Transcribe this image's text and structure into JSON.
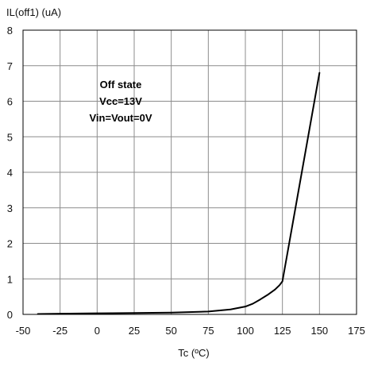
{
  "chart_data": {
    "type": "line",
    "title": "",
    "xlabel": "Tc (ºC)",
    "ylabel": "IL(off1) (uA)",
    "xlim": [
      -50,
      175
    ],
    "ylim": [
      0,
      8
    ],
    "x_ticks": [
      -50,
      -25,
      0,
      25,
      50,
      75,
      100,
      125,
      150,
      175
    ],
    "y_ticks": [
      0,
      1,
      2,
      3,
      4,
      5,
      6,
      7,
      8
    ],
    "grid": true,
    "legend": "none",
    "annotations": [
      "Off state",
      "Vcc=13V",
      "Vin=Vout=0V"
    ],
    "series": [
      {
        "color": "#000000",
        "x": [
          -40,
          -25,
          0,
          25,
          50,
          75,
          90,
          100,
          105,
          110,
          115,
          120,
          123,
          125,
          150
        ],
        "y": [
          0.01,
          0.02,
          0.03,
          0.04,
          0.05,
          0.08,
          0.14,
          0.22,
          0.3,
          0.42,
          0.55,
          0.7,
          0.82,
          0.93,
          6.8
        ]
      }
    ]
  }
}
